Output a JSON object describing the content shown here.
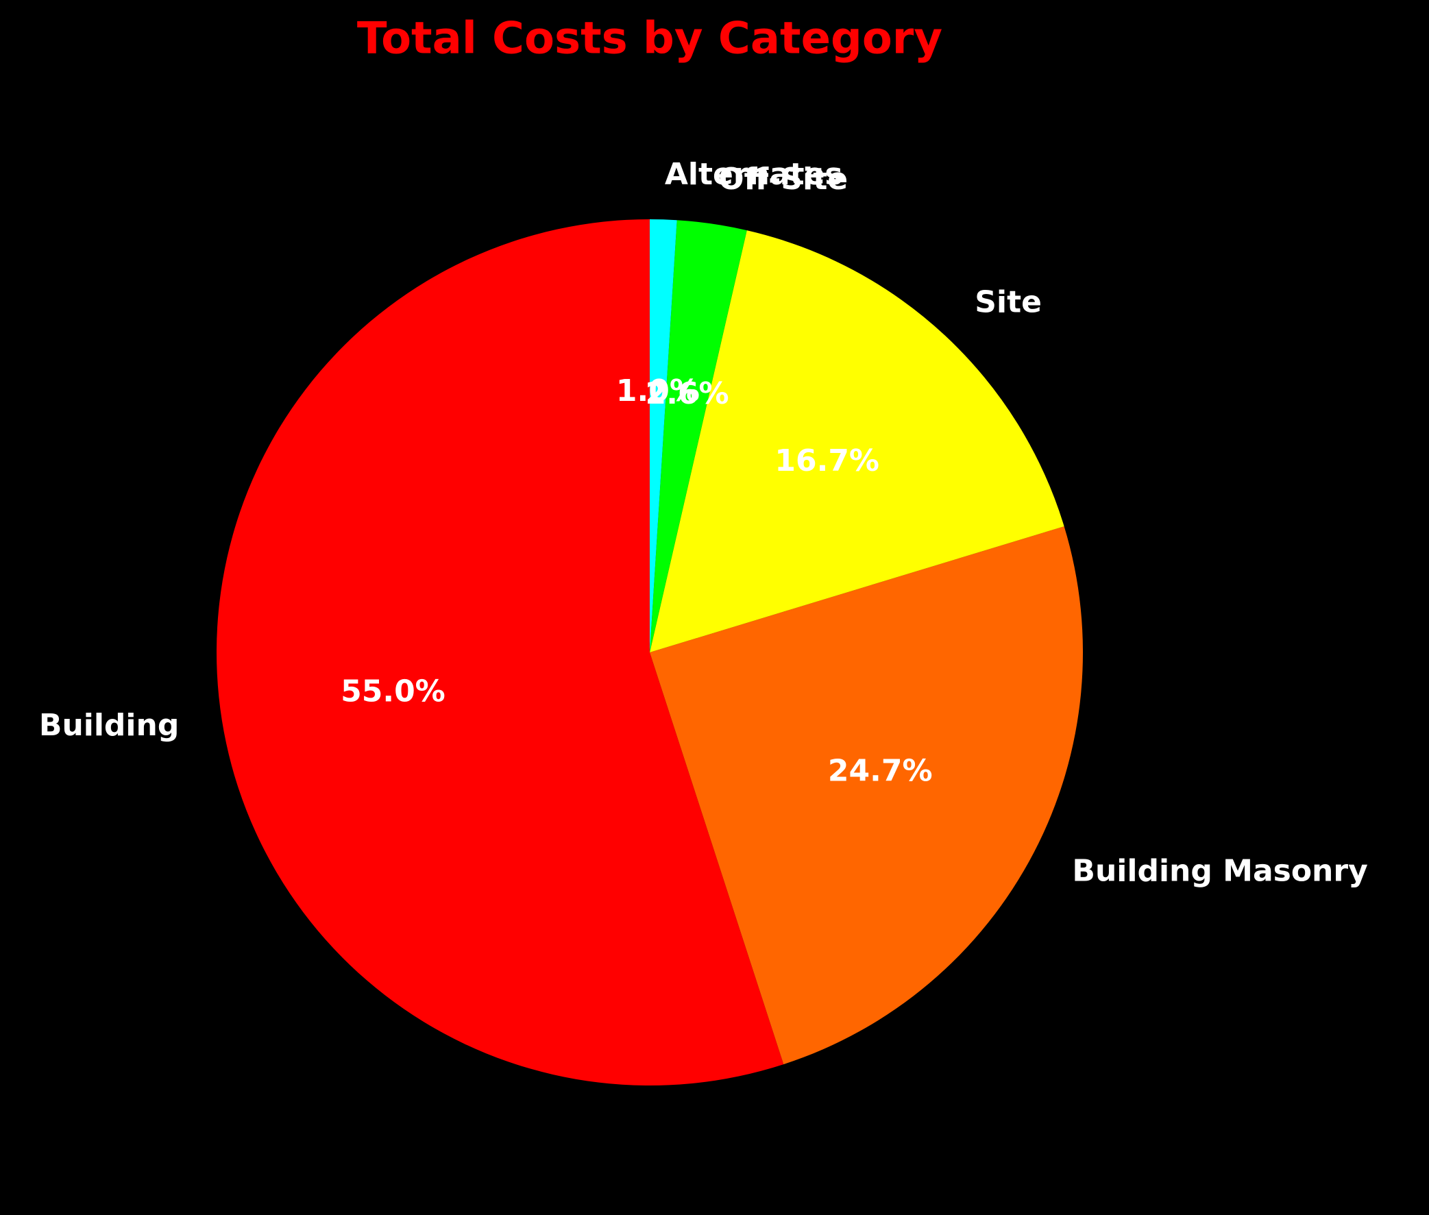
{
  "chart_data": {
    "type": "pie",
    "title": "Total Costs by Category",
    "categories": [
      "Building",
      "Building Masonry",
      "Site",
      "Off-Site",
      "Alternates"
    ],
    "values": [
      55.0,
      24.7,
      16.7,
      2.6,
      1.0
    ],
    "value_labels": [
      "55.0%",
      "24.7%",
      "16.7%",
      "2.6%",
      "1.0%"
    ],
    "colors": [
      "#ff0000",
      "#ff6600",
      "#ffff00",
      "#00ff00",
      "#00ffff"
    ]
  }
}
